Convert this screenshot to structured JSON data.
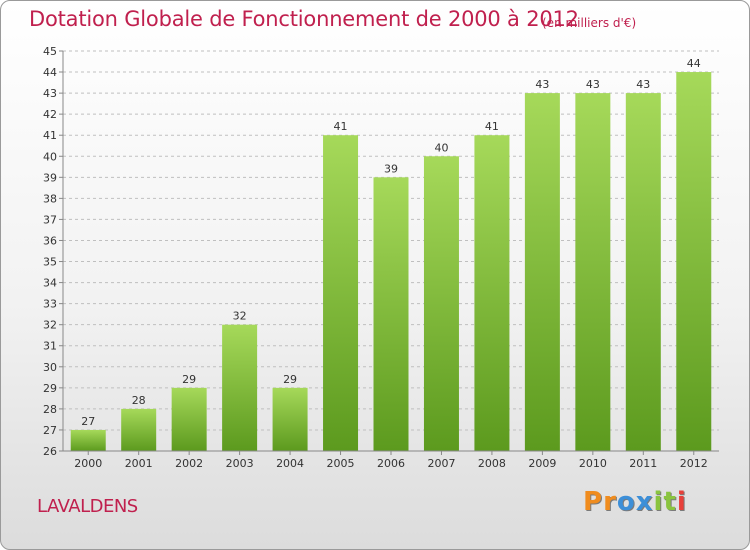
{
  "title": "Dotation Globale de Fonctionnement de 2000 à 2012",
  "unit": "(en milliers d'€)",
  "place": "LAVALDENS",
  "logo": {
    "letters": [
      {
        "ch": "P",
        "color": "#f08c1e"
      },
      {
        "ch": "r",
        "color": "#f08c1e"
      },
      {
        "ch": "o",
        "color": "#3d8fd8"
      },
      {
        "ch": "x",
        "color": "#3d8fd8"
      },
      {
        "ch": "i",
        "color": "#8ac43f"
      },
      {
        "ch": "t",
        "color": "#8ac43f"
      },
      {
        "ch": "i",
        "color": "#e8403a"
      }
    ]
  },
  "chart_data": {
    "type": "bar",
    "categories": [
      "2000",
      "2001",
      "2002",
      "2003",
      "2004",
      "2005",
      "2006",
      "2007",
      "2008",
      "2009",
      "2010",
      "2011",
      "2012"
    ],
    "values": [
      27,
      28,
      29,
      32,
      29,
      41,
      39,
      40,
      41,
      43,
      43,
      43,
      44
    ],
    "ylim": [
      26,
      45
    ],
    "yticks": [
      26,
      27,
      28,
      29,
      30,
      31,
      32,
      33,
      34,
      35,
      36,
      37,
      38,
      39,
      40,
      41,
      42,
      43,
      44,
      45
    ],
    "grid": true,
    "colors": {
      "bar_top": "#a6d95a",
      "bar_bottom": "#5c9a1e",
      "grid": "#bfbfbf",
      "axis": "#888888"
    }
  }
}
